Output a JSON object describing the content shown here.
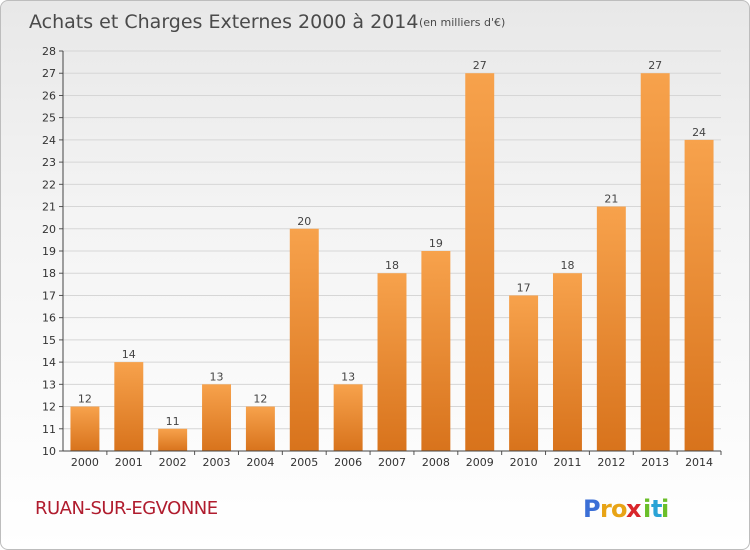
{
  "chart_data": {
    "type": "bar",
    "title": "Achats et Charges Externes 2000 à 2014",
    "subtitle": "(en milliers d'€)",
    "categories": [
      "2000",
      "2001",
      "2002",
      "2003",
      "2004",
      "2005",
      "2006",
      "2007",
      "2008",
      "2009",
      "2010",
      "2011",
      "2012",
      "2013",
      "2014"
    ],
    "values": [
      12,
      14,
      11,
      13,
      12,
      20,
      13,
      18,
      19,
      27,
      17,
      18,
      21,
      27,
      24
    ],
    "ylim": [
      10,
      28
    ],
    "yticks": [
      10,
      11,
      12,
      13,
      14,
      15,
      16,
      17,
      18,
      19,
      20,
      21,
      22,
      23,
      24,
      25,
      26,
      27,
      28
    ],
    "grid": true,
    "legend": "none",
    "bar_color": "#f0923a"
  },
  "location": "RUAN-SUR-EGVONNE",
  "brand": {
    "letters": [
      "P",
      "r",
      "o",
      "x",
      "i",
      "t",
      "i"
    ],
    "colors": [
      "#3b6fd6",
      "#e8a416",
      "#e8a416",
      "#d9262b",
      "#6bbf2a",
      "#2aa3d6",
      "#6bbf2a"
    ]
  }
}
